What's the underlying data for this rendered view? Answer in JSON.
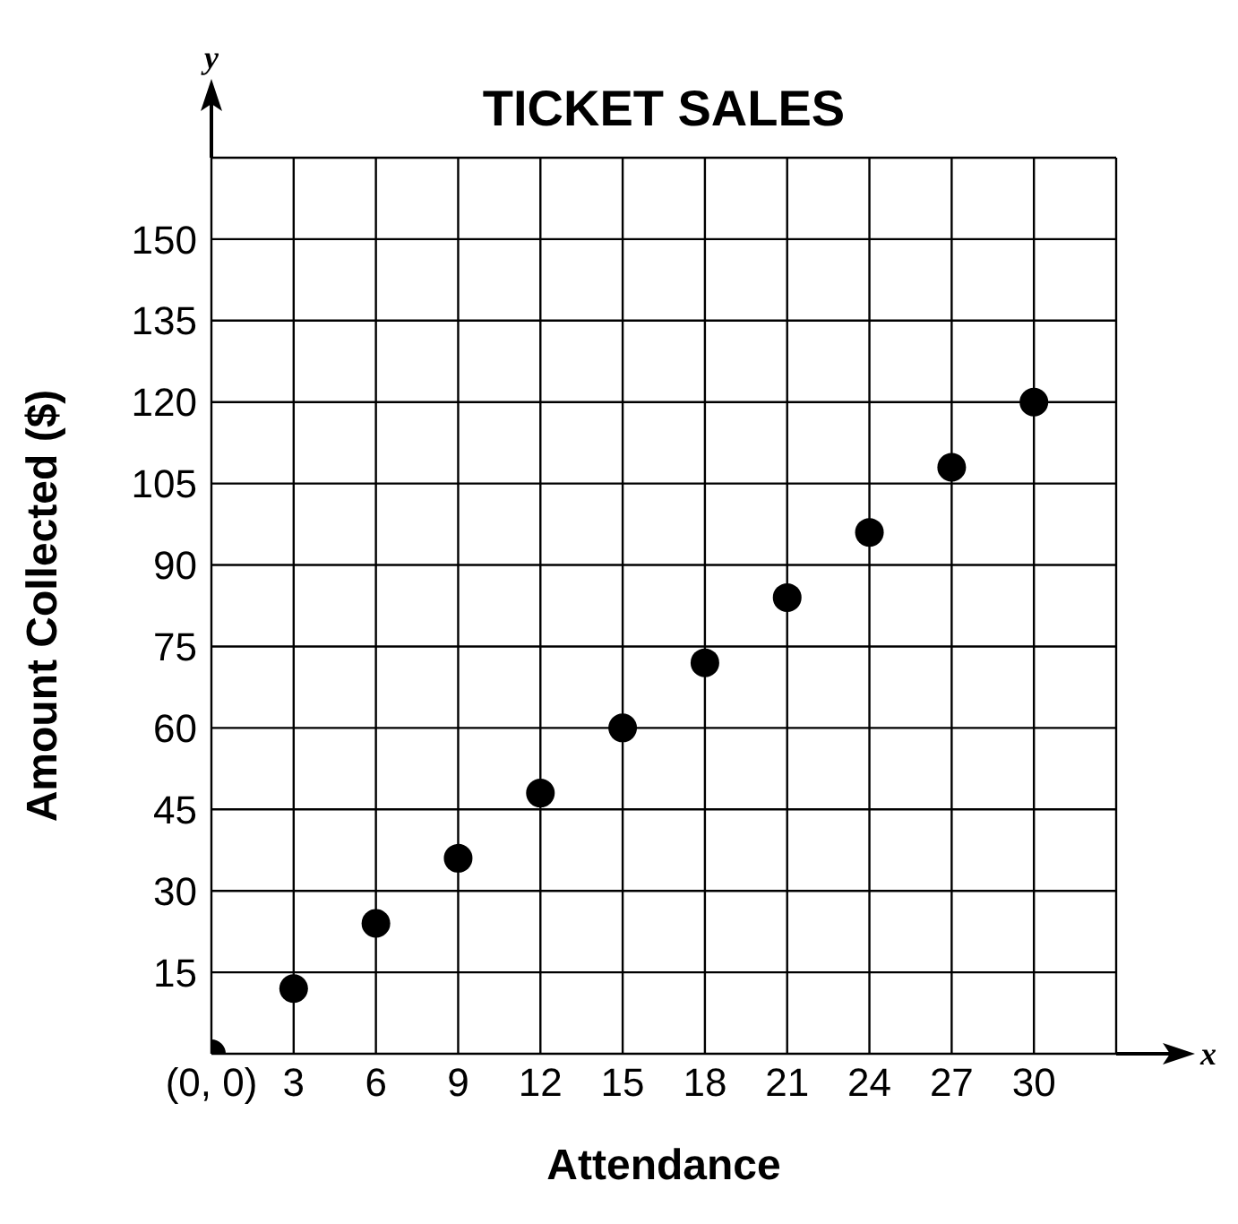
{
  "chart_data": {
    "type": "scatter",
    "title": "TICKET SALES",
    "xlabel": "Attendance",
    "ylabel": "Amount Collected ($)",
    "annotations": [
      "x",
      "y"
    ],
    "x": [
      0,
      3,
      6,
      9,
      12,
      15,
      18,
      21,
      24,
      27,
      30
    ],
    "series": [
      {
        "color": "#000000",
        "values": [
          0,
          12,
          24,
          36,
          48,
          60,
          72,
          84,
          96,
          108,
          120
        ]
      }
    ],
    "xlim": [
      0,
      33
    ],
    "ylim": [
      0,
      165
    ],
    "xticks": [
      {
        "value": 0,
        "label": "(0, 0)"
      },
      3,
      6,
      9,
      12,
      15,
      18,
      21,
      24,
      27,
      30,
      {
        "value": 33,
        "label": null
      }
    ],
    "yticks": [
      {
        "value": 0,
        "label": null
      },
      15,
      30,
      45,
      60,
      75,
      90,
      105,
      120,
      135,
      150,
      {
        "value": 165,
        "label": null
      }
    ],
    "grid": true,
    "marker": "circle"
  }
}
